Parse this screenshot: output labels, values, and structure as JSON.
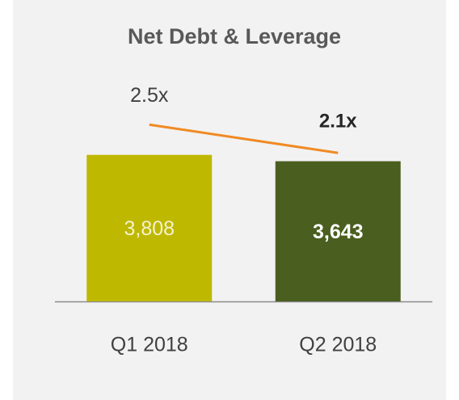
{
  "chart_data": {
    "type": "bar",
    "title": "Net Debt & Leverage",
    "categories": [
      "Q1 2018",
      "Q2 2018"
    ],
    "series": [
      {
        "type": "bar",
        "values": [
          3808,
          3643
        ],
        "value_labels": [
          "3,808",
          "3,643"
        ],
        "colors": [
          "#bfb800",
          "#4a5e1f"
        ]
      },
      {
        "type": "line",
        "axis": "y2",
        "values": [
          2.5,
          2.1
        ],
        "value_labels": [
          "2.5x",
          "2.1x"
        ],
        "color": "#f08a24"
      }
    ],
    "ylim": [
      0,
      4200
    ],
    "y2lim": [
      0,
      3
    ]
  }
}
